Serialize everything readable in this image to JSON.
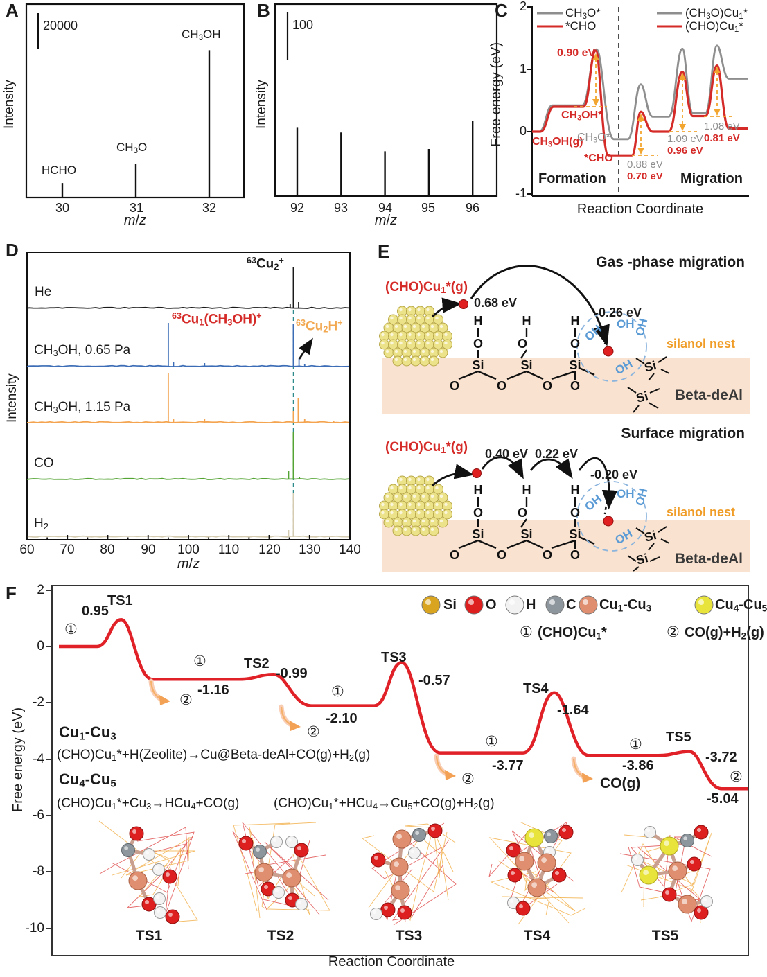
{
  "figure": {
    "xlabel_reaction": "Reaction Coordinate",
    "ylabel_free_energy": "Free energy (eV)",
    "ylabel_intensity": "Intensity",
    "xlabel_mz_html": "<i>m</i>/<i>z</i>"
  },
  "chart_data": {
    "A": {
      "type": "bar",
      "panel_label": "A",
      "ylabel": "Intensity",
      "xlabel_html": "<i>m</i>/<i>z</i>",
      "scale_bar": {
        "value": 20000,
        "label": "20000"
      },
      "peaks": [
        {
          "mz": 30,
          "label_html": "HCHO",
          "intensity_est": 7800
        },
        {
          "mz": 31,
          "label_html": "CH<sub>3</sub>O",
          "intensity_est": 18800
        },
        {
          "mz": 32,
          "label_html": "CH<sub>3</sub>OH",
          "intensity_est": 83000
        }
      ],
      "xticks": [
        "30",
        "31",
        "32"
      ]
    },
    "B": {
      "type": "bar",
      "panel_label": "B",
      "ylabel": "Intensity",
      "xlabel_html": "<i>m</i>/<i>z</i>",
      "scale_bar": {
        "value": 100,
        "label": "100"
      },
      "peaks": [
        {
          "mz": 92,
          "intensity_est": 145
        },
        {
          "mz": 93,
          "intensity_est": 135
        },
        {
          "mz": 94,
          "intensity_est": 95
        },
        {
          "mz": 95,
          "intensity_est": 100
        },
        {
          "mz": 96,
          "intensity_est": 160
        }
      ],
      "xticks": [
        "92",
        "93",
        "94",
        "95",
        "96"
      ]
    },
    "C": {
      "type": "line",
      "panel_label": "C",
      "ylabel": "Free energy (eV)",
      "xlabel": "Reaction Coordinate",
      "ylim": [
        -1,
        2
      ],
      "yticks": [
        "2",
        "1",
        "0",
        "-1"
      ],
      "legend_left": [
        {
          "label_html": "CH<sub>3</sub>O*",
          "color": "#8e8e8e"
        },
        {
          "label_html": "*CHO",
          "color": "#d52b28"
        }
      ],
      "legend_right": [
        {
          "label_html": "(CH<sub>3</sub>O)Cu<sub>1</sub>*",
          "color": "#8e8e8e"
        },
        {
          "label_html": "(CHO)Cu<sub>1</sub>*",
          "color": "#d52b28"
        }
      ],
      "series": [
        {
          "name": "CH3O* / (CH3O)Cu1*",
          "color": "#8e8e8e",
          "formation_energies": [
            0,
            0.42,
            1.32,
            -0.12
          ],
          "migration": {
            "ts": [
              0.76,
              1.33,
              1.38
            ],
            "minima": [
              0.24,
              0.3
            ],
            "end": 0.85
          },
          "migration_barriers_eV": [
            0.88,
            1.09,
            1.08
          ]
        },
        {
          "name": "*CHO / (CHO)Cu1*",
          "color": "#d52b28",
          "formation_energies": [
            0,
            0.4,
            1.3,
            -0.38
          ],
          "formation_barrier_eV": 0.9,
          "migration": {
            "ts": [
              0.32,
              0.96,
              1.06
            ],
            "minima": [
              0.0,
              0.25
            ],
            "end": 0.05
          },
          "migration_barriers_eV": [
            0.7,
            0.96,
            0.81
          ]
        }
      ],
      "annotations": {
        "barrier_formation_red": "0.90 eV",
        "ch3oh_ads": "CH<sub>3</sub>OH*",
        "ch3oh_gas": "CH<sub>3</sub>OH(g)",
        "ch3o_ads": "CH<sub>3</sub>O*",
        "cho_ads": "*CHO",
        "m1g": "0.88 eV",
        "m1r": "0.70 eV",
        "m2g": "1.09 eV",
        "m2r": "0.96 eV",
        "m3g": "1.08 eV",
        "m3r": "0.81 eV",
        "formation": "Formation",
        "migration": "Migration"
      }
    },
    "D": {
      "type": "line",
      "panel_label": "D",
      "ylabel": "Intensity",
      "xlabel_html": "<i>m</i>/<i>z</i>",
      "xlim": [
        60,
        140
      ],
      "xticks": [
        "60",
        "70",
        "80",
        "90",
        "100",
        "110",
        "120",
        "130",
        "140"
      ],
      "dashed_line_mz": 126,
      "traces": [
        {
          "label_html": "He",
          "color": "#1a1a1a",
          "peaks": [
            {
              "mz": 125.2,
              "h": 6
            },
            {
              "mz": 126,
              "h": 59
            },
            {
              "mz": 127.3,
              "h": 9
            }
          ]
        },
        {
          "label_html": "CH<sub>3</sub>OH, 0.65 Pa",
          "color": "#3b6cb5",
          "peaks": [
            {
              "mz": 95,
              "h": 63
            },
            {
              "mz": 96.3,
              "h": 6
            },
            {
              "mz": 104,
              "h": 5
            },
            {
              "mz": 126,
              "h": 62
            },
            {
              "mz": 127.4,
              "h": 13
            },
            {
              "mz": 128.8,
              "h": 4
            }
          ]
        },
        {
          "label_html": "CH<sub>3</sub>OH, 1.15 Pa",
          "color": "#f4a44f",
          "peaks": [
            {
              "mz": 95,
              "h": 71
            },
            {
              "mz": 96.3,
              "h": 5
            },
            {
              "mz": 104,
              "h": 6
            },
            {
              "mz": 126,
              "h": 17
            },
            {
              "mz": 127.2,
              "h": 35
            },
            {
              "mz": 128.8,
              "h": 5
            },
            {
              "mz": 136,
              "h": 3
            }
          ]
        },
        {
          "label_html": "CO",
          "color": "#53a433",
          "peaks": [
            {
              "mz": 124.8,
              "h": 12
            },
            {
              "mz": 126,
              "h": 68
            },
            {
              "mz": 127.5,
              "h": 4
            }
          ]
        },
        {
          "label_html": "H<sub>2</sub>",
          "color": "#d4cbb0",
          "peaks": [
            {
              "mz": 124.8,
              "h": 10
            },
            {
              "mz": 126,
              "h": 64
            }
          ]
        }
      ],
      "peak_labels": {
        "cu2": "<sup>63</sup>Cu<sub>2</sub><sup>+</sup>",
        "cu1ch3oh": "<sup>63</sup>Cu<sub>1</sub>(CH<sub>3</sub>OH)<sup>+</sup>",
        "cu2h": "<sup>63</sup>Cu<sub>2</sub>H<sup>+</sup>"
      }
    },
    "F": {
      "type": "line",
      "panel_label": "F",
      "ylabel": "Free energy (eV)",
      "xlabel": "Reaction Coordinate",
      "ylim": [
        -10.8,
        2
      ],
      "yticks": [
        "2",
        "0",
        "-2",
        "-4",
        "-6",
        "-8",
        "-10"
      ],
      "profile": [
        {
          "state": "start",
          "E": 0.0,
          "marker": "①"
        },
        {
          "state": "TS1",
          "E": 0.95,
          "label": "0.95"
        },
        {
          "state": "min1",
          "E": -1.16,
          "label": "-1.16",
          "marker": "①",
          "product_marker": "②"
        },
        {
          "state": "TS2",
          "E": -0.99,
          "label": "-0.99"
        },
        {
          "state": "min2",
          "E": -2.1,
          "label": "-2.10",
          "marker": "①",
          "product_marker": "②"
        },
        {
          "state": "TS3",
          "E": -0.57,
          "label": "-0.57"
        },
        {
          "state": "min3",
          "E": -3.77,
          "label": "-3.77",
          "marker": "①",
          "product_marker": "②"
        },
        {
          "state": "TS4",
          "E": -1.64,
          "label": "-1.64"
        },
        {
          "state": "min4",
          "E": -3.86,
          "label": "-3.86",
          "marker": "①",
          "released": "CO(g)"
        },
        {
          "state": "TS5",
          "E": -3.72,
          "label": "-3.72"
        },
        {
          "state": "end",
          "E": -5.04,
          "label": "-5.04",
          "marker": "②"
        }
      ],
      "headings": {
        "cu13": "Cu<sub>1</sub>-Cu<sub>3</sub>",
        "cu45": "Cu<sub>4</sub>-Cu<sub>5</sub>"
      },
      "equations": {
        "eq1": "(CHO)Cu<sub>1</sub>*+H(Zeolite)→Cu@Beta-deAl+CO(g)+H<sub>2</sub>(g)",
        "eq2a": "(CHO)Cu<sub>1</sub>*+Cu<sub>3</sub>→HCu<sub>4</sub>+CO(g)",
        "eq2b": "(CHO)Cu<sub>1</sub>*+HCu<sub>4</sub>→Cu<sub>5</sub>+CO(g)+H<sub>2</sub>(g)"
      },
      "atom_legend": [
        {
          "name_html": "Si",
          "color": "#d9a521"
        },
        {
          "name_html": "O",
          "color": "#dd1f1f"
        },
        {
          "name_html": "H",
          "color": "#f2f2f2"
        },
        {
          "name_html": "C",
          "color": "#8d969c"
        },
        {
          "name_html": "Cu<sub>1</sub>-Cu<sub>3</sub>",
          "color": "#df8f6f"
        },
        {
          "name_html": "Cu<sub>4</sub>-Cu<sub>5</sub>",
          "color": "#e9e43c"
        }
      ],
      "species_legend": [
        {
          "marker": "①",
          "label_html": "(CHO)Cu<sub>1</sub>*"
        },
        {
          "marker": "②",
          "label_html": "CO(g)+H<sub>2</sub>(g)"
        }
      ],
      "structures": [
        "TS1",
        "TS2",
        "TS3",
        "TS4",
        "TS5"
      ]
    }
  },
  "diagram_e": {
    "panel_label": "E",
    "sections": [
      {
        "title": "Gas -phase migration",
        "species_html": "(CHO)Cu<sub>1</sub>*(g)",
        "energies": [
          "0.68 eV",
          "-0.26 eV"
        ],
        "nest_label": "silanol nest",
        "support_label": "Beta-deAl"
      },
      {
        "title": "Surface migration",
        "species_html": "(CHO)Cu<sub>1</sub>*(g)",
        "energies": [
          "0.40 eV",
          "0.22 eV",
          "-0.20 eV"
        ],
        "nest_label": "silanol nest",
        "support_label": "Beta-deAl"
      }
    ],
    "atoms": {
      "h": "H",
      "o": "O",
      "si": "Si",
      "oh": "OH"
    }
  }
}
